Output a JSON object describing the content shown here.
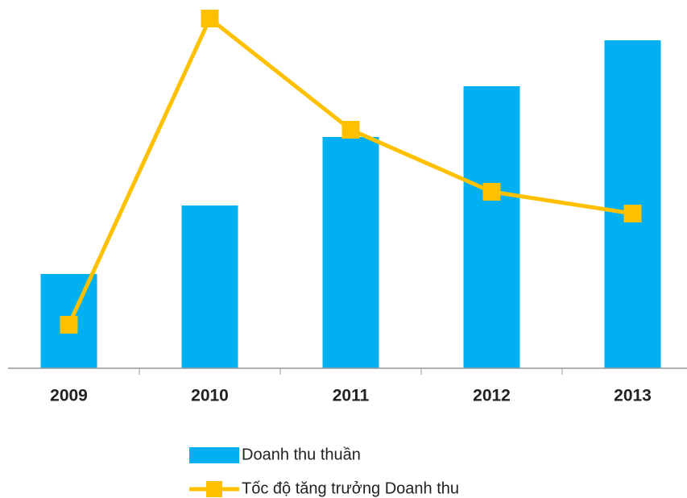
{
  "chart_data": {
    "type": "bar_line",
    "categories": [
      "2009",
      "2010",
      "2011",
      "2012",
      "2013"
    ],
    "series": [
      {
        "name": "Doanh thu thuần",
        "type": "bar",
        "color": "#00b0f0",
        "values": [
          117,
          202,
          287,
          350,
          407
        ]
      },
      {
        "name": "Tốc độ tăng trưởng Doanh thu",
        "type": "line",
        "axis": "y2",
        "color": "#ffc000",
        "values": [
          54,
          434,
          296,
          219,
          192
        ]
      }
    ],
    "ylim": [
      0,
      450
    ],
    "y2lim": [
      0,
      450
    ]
  }
}
